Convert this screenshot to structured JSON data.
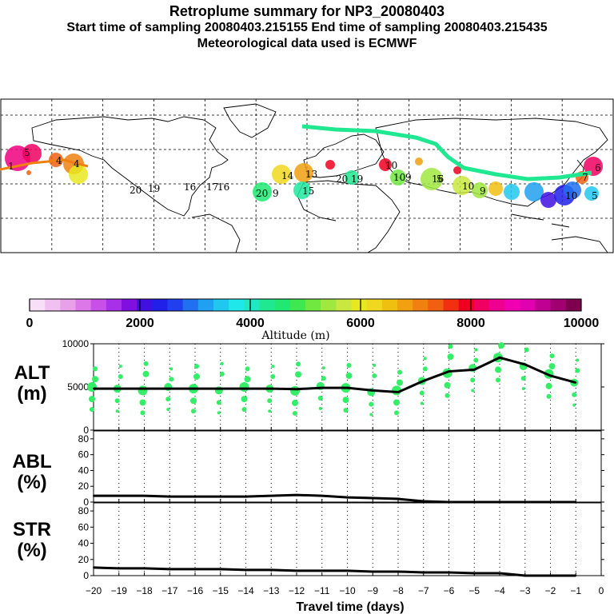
{
  "header": {
    "title": "Retroplume summary for NP3_20080403",
    "line2": "Start time of sampling 20080403.215155     End time of sampling 20080403.215435",
    "line3": "Meteorological data used is ECMWF"
  },
  "colorbar": {
    "label": "Altitude (m)",
    "ticks": [
      "0",
      "2000",
      "4000",
      "6000",
      "8000",
      "10000"
    ],
    "colors": [
      "#f7e0f7",
      "#f0c0f0",
      "#e8a0e8",
      "#dd78e8",
      "#c850e8",
      "#a830e8",
      "#8010e0",
      "#4010e0",
      "#2020e8",
      "#2040f0",
      "#2070f0",
      "#20a0f0",
      "#20c8f0",
      "#20e8e8",
      "#20e8c0",
      "#20e890",
      "#20e870",
      "#40e850",
      "#70e840",
      "#a0e840",
      "#c8e840",
      "#e8e820",
      "#f0d820",
      "#f0c010",
      "#f0a010",
      "#f08010",
      "#f06010",
      "#f03010",
      "#f00020",
      "#f00060",
      "#f00090",
      "#f000b0",
      "#e000b0",
      "#c00090",
      "#a00070",
      "#800050"
    ]
  },
  "panels": {
    "alt": {
      "label_top": "ALT",
      "label_bot": "(m)"
    },
    "abl": {
      "label_top": "ABL",
      "label_bot": "(%)"
    },
    "str": {
      "label_top": "STR",
      "label_bot": "(%)"
    },
    "xlabel": "Travel time (days)"
  },
  "chart_data": [
    {
      "type": "line",
      "name": "ALT",
      "ylabel": "ALT (m)",
      "ylim": [
        0,
        10000
      ],
      "yticks": [
        "10000",
        "5000",
        "0"
      ],
      "x": [
        -20,
        -19,
        -18,
        -17,
        -16,
        -15,
        -14,
        -13,
        -12,
        -11,
        -10,
        -9,
        -8,
        -7,
        -6,
        -5,
        -4,
        -3,
        -2,
        -1
      ],
      "values": [
        4800,
        4800,
        4800,
        4800,
        4800,
        4800,
        4800,
        4800,
        4750,
        4900,
        4900,
        4600,
        4400,
        5700,
        6800,
        7000,
        8400,
        7600,
        6300,
        5500
      ],
      "scatter_color": "#33ee66"
    },
    {
      "type": "line",
      "name": "ABL",
      "ylabel": "ABL (%)",
      "ylim": [
        0,
        90
      ],
      "yticks": [
        "80",
        "60",
        "40",
        "20",
        "0"
      ],
      "x": [
        -20,
        -19,
        -18,
        -17,
        -16,
        -15,
        -14,
        -13,
        -12,
        -11,
        -10,
        -9,
        -8,
        -7,
        -6,
        -5,
        -4,
        -3,
        -2,
        -1
      ],
      "values": [
        8,
        8,
        8,
        7,
        7,
        7,
        7,
        8,
        9,
        8,
        6,
        5,
        4,
        1,
        0,
        0,
        0,
        0,
        0,
        0
      ]
    },
    {
      "type": "line",
      "name": "STR",
      "ylabel": "STR (%)",
      "ylim": [
        0,
        90
      ],
      "yticks": [
        "80",
        "60",
        "40",
        "20",
        "0"
      ],
      "xlabel": "Travel time (days)",
      "xticks": [
        "−20",
        "−19",
        "−18",
        "−17",
        "−16",
        "−15",
        "−14",
        "−13",
        "−12",
        "−11",
        "−10",
        "−9",
        "−8",
        "−7",
        "−6",
        "−5",
        "−4",
        "−3",
        "−2",
        "−1",
        "0"
      ],
      "x": [
        -20,
        -19,
        -18,
        -17,
        -16,
        -15,
        -14,
        -13,
        -12,
        -11,
        -10,
        -9,
        -8,
        -7,
        -6,
        -5,
        -4,
        -3,
        -2,
        -1
      ],
      "values": [
        10,
        9,
        9,
        8,
        8,
        8,
        7,
        7,
        6,
        6,
        6,
        5,
        5,
        4,
        4,
        3,
        3,
        0,
        0,
        0
      ]
    }
  ],
  "map": {
    "labels": [
      {
        "t": "1",
        "c": "#f00060"
      },
      {
        "t": "20",
        "c": "#70e840"
      },
      {
        "t": "19",
        "c": "#70e840"
      },
      {
        "t": "16",
        "c": "#70e840"
      },
      {
        "t": "17",
        "c": "#70e840"
      },
      {
        "t": "16",
        "c": "#70e840"
      },
      {
        "t": "14",
        "c": "#f0d820"
      },
      {
        "t": "13",
        "c": "#f0a010"
      },
      {
        "t": "20",
        "c": "#20e870"
      },
      {
        "t": "9",
        "c": "#20e870"
      },
      {
        "t": "15",
        "c": "#20e8a0"
      },
      {
        "t": "10",
        "c": "#f00020"
      },
      {
        "t": "20",
        "c": "#20e890"
      },
      {
        "t": "19",
        "c": "#20e890"
      },
      {
        "t": "10",
        "c": "#a0e840"
      },
      {
        "t": "9",
        "c": "#a0e840"
      },
      {
        "t": "16",
        "c": "#a0e840"
      },
      {
        "t": "5",
        "c": "#a0e840"
      },
      {
        "t": "10",
        "c": "#c8e840"
      },
      {
        "t": "9",
        "c": "#c8e840"
      },
      {
        "t": "6",
        "c": "#f000b0"
      },
      {
        "t": "7",
        "c": "#f06010"
      },
      {
        "t": "10",
        "c": "#2070f0"
      },
      {
        "t": "5",
        "c": "#20c8f0"
      },
      {
        "t": "5",
        "c": "#f00060"
      },
      {
        "t": "4",
        "c": "#f06010"
      },
      {
        "t": "4",
        "c": "#e8e820"
      }
    ]
  }
}
